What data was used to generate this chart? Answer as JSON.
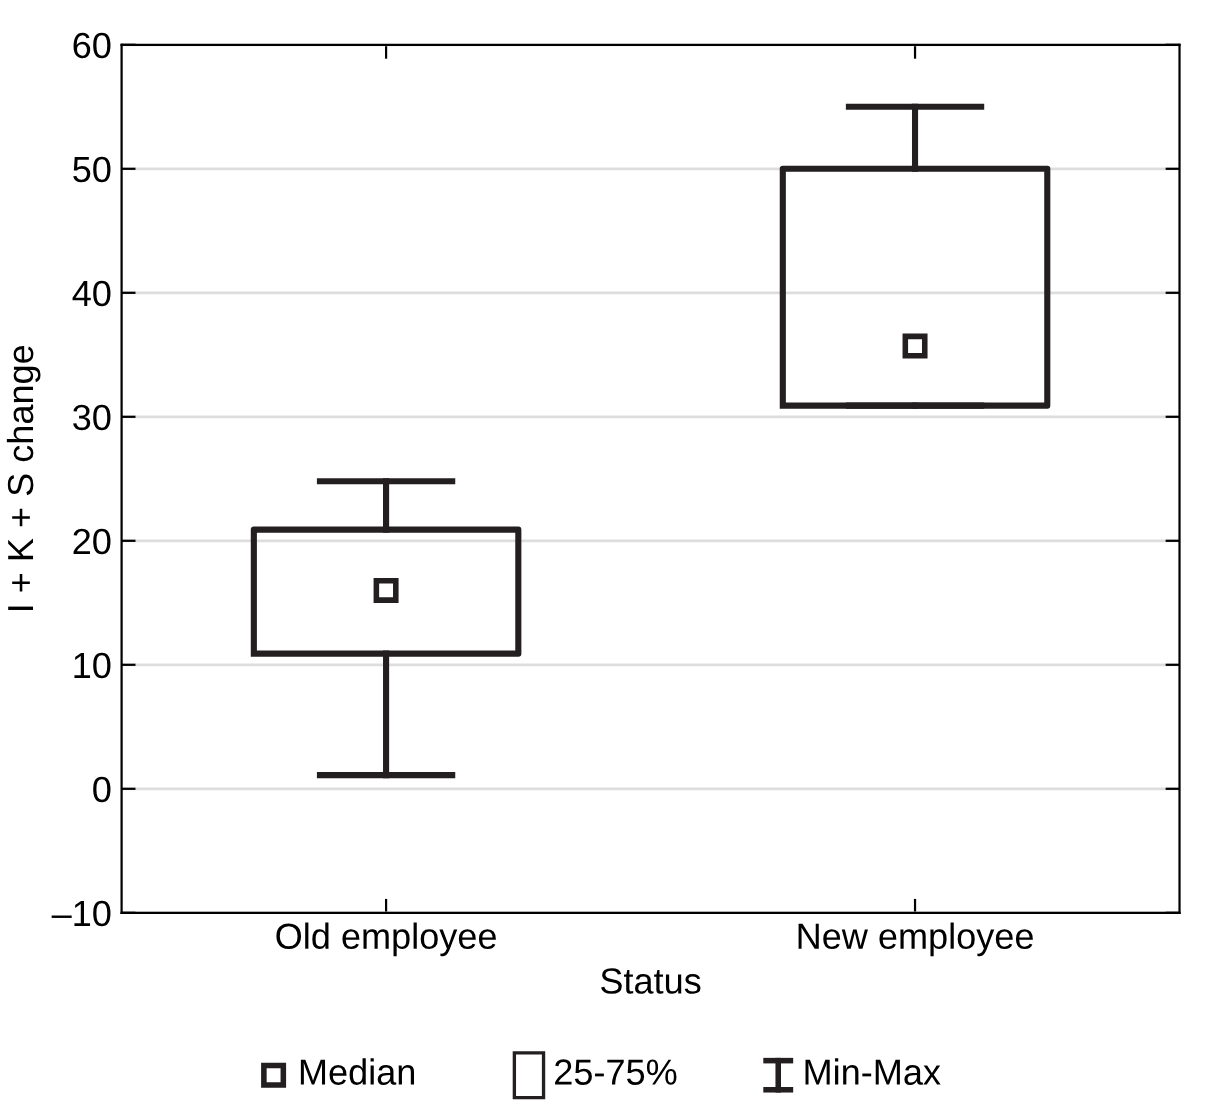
{
  "chart_data": {
    "type": "box",
    "xlabel": "Status",
    "ylabel": "I + K + S change",
    "categories": [
      "Old employee",
      "New employee"
    ],
    "boxes": [
      {
        "low": 1.1,
        "q1": 10.9,
        "median": 16.0,
        "q3": 20.9,
        "high": 24.8
      },
      {
        "low": 30.9,
        "q1": 30.9,
        "median": 35.7,
        "q3": 50.0,
        "high": 55.0
      }
    ],
    "ylim": [
      -10,
      60
    ],
    "yticks": [
      {
        "value": -10,
        "label": "–10"
      },
      0,
      10,
      20,
      30,
      40,
      50,
      60
    ],
    "grid": "y",
    "marker": "square",
    "annotations": [
      "Median",
      "25-75%",
      "Min-Max"
    ]
  }
}
